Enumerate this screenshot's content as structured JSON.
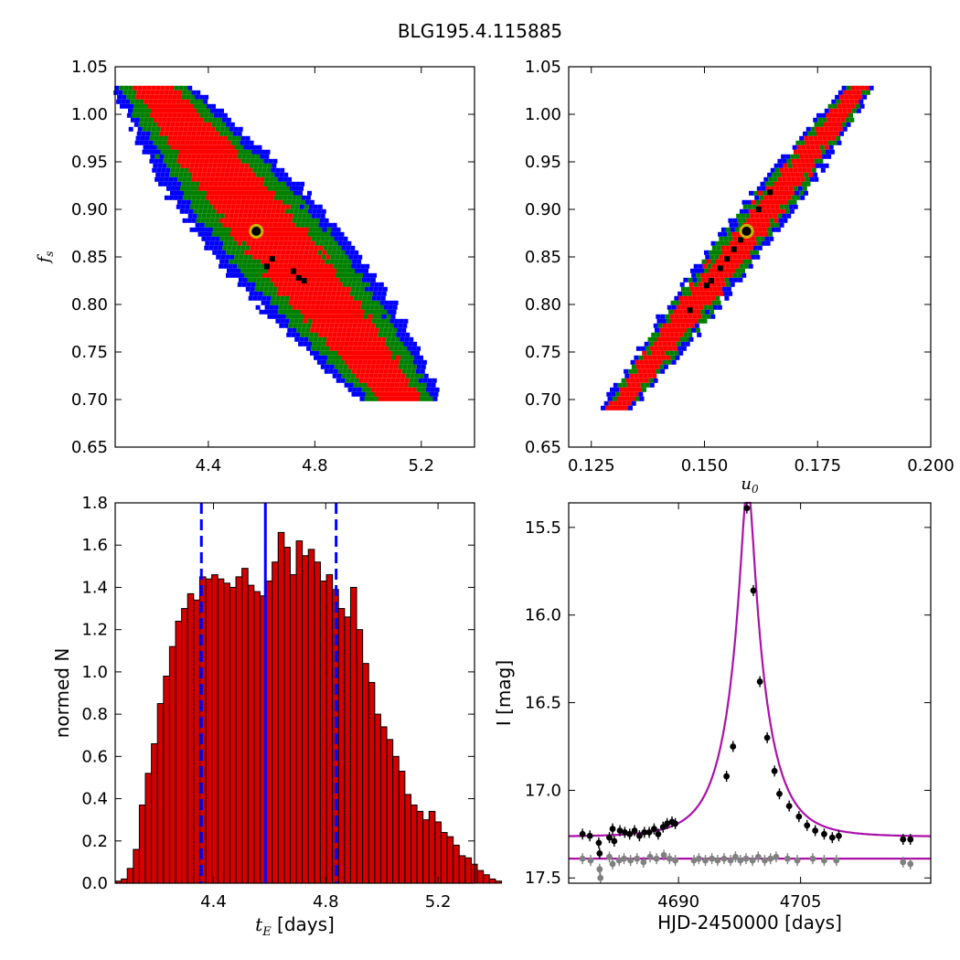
{
  "figure_title": "BLG195.4.115885",
  "colors": {
    "sigma1": "#ff0000",
    "sigma2": "#008000",
    "sigma3": "#0000ff",
    "mcmc_points": "#000000",
    "best_fit_ring": "#c8b400",
    "hist_bars": "#d40000",
    "hist_lines": "#0000ff",
    "model_curve": "#aa11aa",
    "data_primary": "#000000",
    "data_residual": "#808080"
  },
  "chart_data": [
    {
      "id": "tE-fs",
      "type": "heatmap",
      "xlabel": "",
      "ylabel_main": "f",
      "ylabel_sub": "s",
      "xlim": [
        4.05,
        5.4
      ],
      "ylim": [
        0.65,
        1.05
      ],
      "xticks": [
        "4.4",
        "4.8",
        "5.2"
      ],
      "xtick_values": [
        4.4,
        4.8,
        5.2
      ],
      "yticks": [
        "0.65",
        "0.70",
        "0.75",
        "0.80",
        "0.85",
        "0.90",
        "0.95",
        "1.00",
        "1.05"
      ],
      "ytick_values": [
        0.65,
        0.7,
        0.75,
        0.8,
        0.85,
        0.9,
        0.95,
        1.0,
        1.05
      ],
      "contour_band": {
        "start": [
          4.19,
          1.03
        ],
        "end": [
          5.12,
          0.7
        ],
        "width_x_1sigma": 0.14,
        "width_x_2sigma": 0.22,
        "width_x_3sigma": 0.28
      },
      "best_fit": [
        4.58,
        0.877
      ],
      "mcmc_points": [
        [
          4.64,
          0.848
        ],
        [
          4.72,
          0.835
        ],
        [
          4.74,
          0.828
        ],
        [
          4.76,
          0.825
        ],
        [
          4.62,
          0.84
        ]
      ]
    },
    {
      "id": "u0-fs",
      "type": "heatmap",
      "xlabel_main": "u",
      "xlabel_sub": "0",
      "ylabel": "",
      "xlim": [
        0.12,
        0.2
      ],
      "ylim": [
        0.65,
        1.05
      ],
      "xticks": [
        "0.125",
        "0.150",
        "0.175",
        "0.200"
      ],
      "xtick_values": [
        0.125,
        0.15,
        0.175,
        0.2
      ],
      "yticks": [
        "0.65",
        "0.70",
        "0.75",
        "0.80",
        "0.85",
        "0.90",
        "0.95",
        "1.00",
        "1.05"
      ],
      "ytick_values": [
        0.65,
        0.7,
        0.75,
        0.8,
        0.85,
        0.9,
        0.95,
        1.0,
        1.05
      ],
      "contour_band": {
        "start": [
          0.13,
          0.692
        ],
        "end": [
          0.1835,
          1.03
        ],
        "width_x_1sigma": 0.0034,
        "width_x_2sigma": 0.0048,
        "width_x_3sigma": 0.0062
      },
      "best_fit": [
        0.1593,
        0.877
      ],
      "mcmc_points": [
        [
          0.1468,
          0.794
        ],
        [
          0.1505,
          0.82
        ],
        [
          0.1515,
          0.825
        ],
        [
          0.1535,
          0.838
        ],
        [
          0.155,
          0.848
        ],
        [
          0.1565,
          0.858
        ],
        [
          0.158,
          0.868
        ],
        [
          0.162,
          0.9
        ],
        [
          0.1645,
          0.918
        ]
      ]
    },
    {
      "id": "tE-hist",
      "type": "bar",
      "xlabel_math": "t",
      "xlabel_sub": "E",
      "xlabel_rest": "[days]",
      "ylabel": "normed N",
      "xlim": [
        4.05,
        5.33
      ],
      "ylim": [
        0.0,
        1.8
      ],
      "xticks": [
        "4.4",
        "4.8",
        "5.2"
      ],
      "xtick_values": [
        4.4,
        4.8,
        5.2
      ],
      "yticks": [
        "0.0",
        "0.2",
        "0.4",
        "0.6",
        "0.8",
        "1.0",
        "1.2",
        "1.4",
        "1.6",
        "1.8"
      ],
      "ytick_values": [
        0.0,
        0.2,
        0.4,
        0.6,
        0.8,
        1.0,
        1.2,
        1.4,
        1.6,
        1.8
      ],
      "bin_start": 4.05,
      "bin_width": 0.0215,
      "values": [
        0.01,
        0.02,
        0.07,
        0.16,
        0.37,
        0.52,
        0.66,
        0.85,
        0.98,
        1.12,
        1.24,
        1.3,
        1.37,
        1.34,
        1.45,
        1.44,
        1.46,
        1.44,
        1.42,
        1.4,
        1.45,
        1.49,
        1.41,
        1.38,
        1.36,
        1.43,
        1.52,
        1.66,
        1.59,
        1.46,
        1.62,
        1.55,
        1.58,
        1.52,
        1.43,
        1.46,
        1.39,
        1.3,
        1.26,
        1.4,
        1.2,
        1.04,
        0.95,
        0.8,
        0.74,
        0.68,
        0.6,
        0.53,
        0.42,
        0.37,
        0.34,
        0.3,
        0.34,
        0.29,
        0.24,
        0.22,
        0.18,
        0.13,
        0.12,
        0.09,
        0.06,
        0.04,
        0.02,
        0.01
      ],
      "median": 4.585,
      "lower": 4.357,
      "upper": 4.837
    },
    {
      "id": "lightcurve",
      "type": "scatter",
      "xlabel": "HJD-2450000 [days]",
      "ylabel": "I [mag]",
      "xlim": [
        4676.5,
        4721
      ],
      "ylim": [
        17.53,
        15.36
      ],
      "xticks": [
        "4690",
        "4705"
      ],
      "xtick_values": [
        4690,
        4705
      ],
      "yticks": [
        "15.5",
        "16.0",
        "16.5",
        "17.0",
        "17.5"
      ],
      "ytick_values": [
        15.5,
        16.0,
        16.5,
        17.0,
        17.5
      ],
      "model": {
        "t0": 4698.5,
        "u0": 0.159,
        "tE": 4.58,
        "I_base": 17.265
      },
      "residual_baseline": 17.39,
      "data": [
        [
          4678.2,
          17.25
        ],
        [
          4679.1,
          17.26
        ],
        [
          4680.2,
          17.3
        ],
        [
          4680.3,
          17.36
        ],
        [
          4681.5,
          17.27
        ],
        [
          4681.9,
          17.22
        ],
        [
          4682.1,
          17.29
        ],
        [
          4682.8,
          17.23
        ],
        [
          4683.4,
          17.24
        ],
        [
          4684.0,
          17.25
        ],
        [
          4684.6,
          17.23
        ],
        [
          4685.2,
          17.26
        ],
        [
          4685.8,
          17.24
        ],
        [
          4686.4,
          17.24
        ],
        [
          4687.0,
          17.22
        ],
        [
          4687.5,
          17.25
        ],
        [
          4688.1,
          17.21
        ],
        [
          4688.6,
          17.19
        ],
        [
          4689.2,
          17.18
        ],
        [
          4689.6,
          17.19
        ],
        [
          4695.9,
          16.92
        ],
        [
          4696.7,
          16.75
        ],
        [
          4698.4,
          15.39
        ],
        [
          4699.2,
          15.86
        ],
        [
          4700.0,
          16.38
        ],
        [
          4700.9,
          16.7
        ],
        [
          4701.8,
          16.89
        ],
        [
          4702.4,
          17.02
        ],
        [
          4703.6,
          17.09
        ],
        [
          4704.8,
          17.15
        ],
        [
          4705.8,
          17.2
        ],
        [
          4706.8,
          17.23
        ],
        [
          4707.9,
          17.25
        ],
        [
          4708.9,
          17.27
        ],
        [
          4709.7,
          17.26
        ],
        [
          4717.6,
          17.28
        ],
        [
          4718.5,
          17.28
        ]
      ],
      "residuals": [
        [
          4678.2,
          17.39
        ],
        [
          4679.2,
          17.4
        ],
        [
          4680.3,
          17.45
        ],
        [
          4680.4,
          17.5
        ],
        [
          4681.5,
          17.38
        ],
        [
          4681.9,
          17.42
        ],
        [
          4682.7,
          17.4
        ],
        [
          4683.3,
          17.39
        ],
        [
          4684.1,
          17.4
        ],
        [
          4684.9,
          17.39
        ],
        [
          4685.7,
          17.41
        ],
        [
          4686.5,
          17.38
        ],
        [
          4687.3,
          17.39
        ],
        [
          4688.2,
          17.37
        ],
        [
          4688.9,
          17.39
        ],
        [
          4689.6,
          17.4
        ],
        [
          4691.9,
          17.4
        ],
        [
          4692.5,
          17.39
        ],
        [
          4693.3,
          17.4
        ],
        [
          4694.1,
          17.39
        ],
        [
          4694.8,
          17.4
        ],
        [
          4695.6,
          17.39
        ],
        [
          4696.4,
          17.4
        ],
        [
          4697.0,
          17.38
        ],
        [
          4697.6,
          17.4
        ],
        [
          4698.3,
          17.39
        ],
        [
          4699.1,
          17.4
        ],
        [
          4699.8,
          17.38
        ],
        [
          4700.6,
          17.4
        ],
        [
          4701.3,
          17.39
        ],
        [
          4702.0,
          17.38
        ],
        [
          4703.4,
          17.39
        ],
        [
          4704.6,
          17.4
        ],
        [
          4706.5,
          17.39
        ],
        [
          4707.9,
          17.4
        ],
        [
          4709.4,
          17.4
        ],
        [
          4717.6,
          17.41
        ],
        [
          4718.5,
          17.42
        ]
      ]
    }
  ]
}
